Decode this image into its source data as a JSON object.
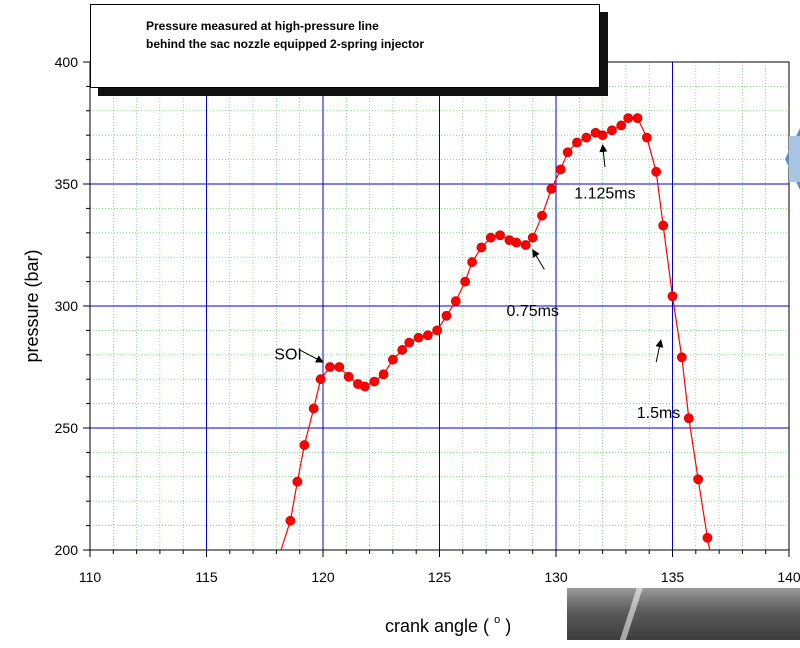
{
  "chart_data": {
    "type": "scatter",
    "title_lines": [
      "Pressure measured at high-pressure line",
      "behind the sac nozzle equipped 2-spring injector"
    ],
    "xlabel": "crank angle ( ° )",
    "xlabel_main": "crank angle (",
    "xlabel_deg": "o",
    "xlabel_close": ")",
    "ylabel": "pressure (bar)",
    "xlim": [
      110,
      140
    ],
    "ylim": [
      200,
      400
    ],
    "x_ticks": [
      "110",
      "115",
      "120",
      "125",
      "130",
      "135",
      "140"
    ],
    "y_ticks": [
      "200",
      "250",
      "300",
      "350",
      "400"
    ],
    "major_grid": true,
    "minor_grid": true,
    "colors": {
      "points": "#ff0000",
      "line": "#ff0000",
      "major_grid": "#0000cc",
      "minor_grid": "#33cc33",
      "title_shadow": "#111111"
    },
    "series": [
      {
        "points": [
          [
            118.6,
            212
          ],
          [
            118.9,
            228
          ],
          [
            119.2,
            243
          ],
          [
            119.6,
            258
          ],
          [
            119.9,
            270
          ],
          [
            120.3,
            275
          ],
          [
            120.7,
            275
          ],
          [
            121.1,
            271
          ],
          [
            121.5,
            268
          ],
          [
            121.8,
            267
          ],
          [
            122.2,
            269
          ],
          [
            122.6,
            272
          ],
          [
            123.0,
            278
          ],
          [
            123.4,
            282
          ],
          [
            123.7,
            285
          ],
          [
            124.1,
            287
          ],
          [
            124.5,
            288
          ],
          [
            124.9,
            290
          ],
          [
            125.3,
            296
          ],
          [
            125.7,
            302
          ],
          [
            126.1,
            310
          ],
          [
            126.4,
            318
          ],
          [
            126.8,
            324
          ],
          [
            127.2,
            328
          ],
          [
            127.6,
            329
          ],
          [
            128.0,
            327
          ],
          [
            128.3,
            326
          ],
          [
            128.7,
            325
          ],
          [
            129.0,
            328
          ],
          [
            129.4,
            337
          ],
          [
            129.8,
            348
          ],
          [
            130.2,
            356
          ],
          [
            130.5,
            363
          ],
          [
            130.9,
            367
          ],
          [
            131.3,
            369
          ],
          [
            131.7,
            371
          ],
          [
            132.0,
            370
          ],
          [
            132.4,
            372
          ],
          [
            132.8,
            374
          ],
          [
            133.1,
            377
          ],
          [
            133.5,
            377
          ],
          [
            133.9,
            369
          ],
          [
            134.3,
            355
          ],
          [
            134.6,
            333
          ],
          [
            135.0,
            304
          ],
          [
            135.4,
            279
          ],
          [
            135.7,
            254
          ],
          [
            136.1,
            229
          ],
          [
            136.5,
            205
          ]
        ]
      }
    ],
    "line": [
      [
        118.2,
        200
      ],
      [
        118.6,
        212
      ],
      [
        118.9,
        228
      ],
      [
        119.2,
        243
      ],
      [
        119.6,
        258
      ],
      [
        119.9,
        270
      ],
      [
        120.3,
        275
      ],
      [
        120.7,
        275
      ],
      [
        121.1,
        271
      ],
      [
        121.5,
        268
      ],
      [
        121.8,
        267
      ],
      [
        122.2,
        269
      ],
      [
        122.6,
        272
      ],
      [
        123.0,
        278
      ],
      [
        123.4,
        282
      ],
      [
        123.7,
        285
      ],
      [
        124.1,
        287
      ],
      [
        124.5,
        288
      ],
      [
        124.9,
        290
      ],
      [
        125.3,
        296
      ],
      [
        125.7,
        302
      ],
      [
        126.1,
        310
      ],
      [
        126.4,
        318
      ],
      [
        126.8,
        324
      ],
      [
        127.2,
        328
      ],
      [
        127.6,
        329
      ],
      [
        128.0,
        327
      ],
      [
        128.3,
        326
      ],
      [
        128.7,
        325
      ],
      [
        129.0,
        328
      ],
      [
        129.4,
        337
      ],
      [
        129.8,
        348
      ],
      [
        130.2,
        356
      ],
      [
        130.5,
        363
      ],
      [
        130.9,
        367
      ],
      [
        131.3,
        369
      ],
      [
        131.7,
        371
      ],
      [
        132.0,
        370
      ],
      [
        132.4,
        372
      ],
      [
        132.8,
        374
      ],
      [
        133.1,
        377
      ],
      [
        133.5,
        377
      ],
      [
        133.9,
        369
      ],
      [
        134.3,
        355
      ],
      [
        134.6,
        333
      ],
      [
        135.0,
        304
      ],
      [
        135.4,
        279
      ],
      [
        135.7,
        254
      ],
      [
        136.1,
        229
      ],
      [
        136.5,
        205
      ],
      [
        136.6,
        200
      ]
    ],
    "annotations": [
      {
        "text": "SOI",
        "text_at": [
          118.5,
          278
        ],
        "arrow_from": [
          119.0,
          282
        ],
        "arrow_to": [
          120.0,
          277
        ]
      },
      {
        "text": "0.75ms",
        "text_at": [
          129.0,
          296
        ],
        "arrow_from": [
          129.5,
          315
        ],
        "arrow_to": [
          129.0,
          323
        ]
      },
      {
        "text": "1.125ms",
        "text_at": [
          132.1,
          344
        ],
        "arrow_from": [
          132.1,
          357
        ],
        "arrow_to": [
          132.0,
          366
        ]
      },
      {
        "text": "1.5ms",
        "text_at": [
          134.4,
          254
        ],
        "arrow_from": [
          134.3,
          277
        ],
        "arrow_to": [
          134.5,
          286
        ]
      }
    ]
  }
}
